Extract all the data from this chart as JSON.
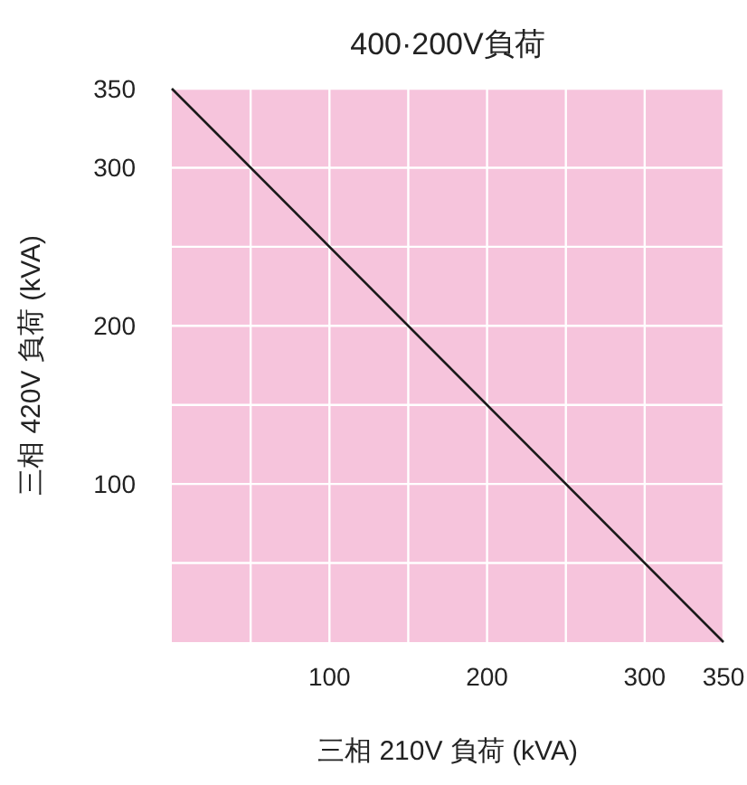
{
  "chart_data": {
    "type": "line",
    "title": "400·200V負荷",
    "xlabel": "三相 210V 負荷 (kVA)",
    "ylabel": "三相 420V 負荷 (kVA)",
    "x": [
      0,
      350
    ],
    "values": [
      350,
      0
    ],
    "color": "#1a1a1a",
    "xlim": [
      0,
      350
    ],
    "ylim": [
      0,
      350
    ],
    "xticks": [
      {
        "value": 50,
        "label": null
      },
      100,
      {
        "value": 150,
        "label": null
      },
      200,
      {
        "value": 250,
        "label": null
      },
      300,
      350
    ],
    "yticks": [
      {
        "value": 50,
        "label": null
      },
      100,
      {
        "value": 150,
        "label": null
      },
      200,
      {
        "value": 250,
        "label": null
      },
      300,
      350
    ],
    "grid": true
  }
}
